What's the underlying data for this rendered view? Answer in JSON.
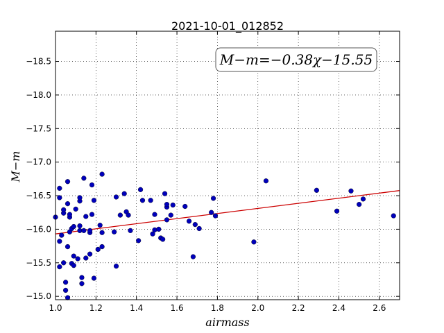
{
  "chart_data": {
    "type": "scatter",
    "title": "2021-10-01_012852",
    "xlabel": "airmass",
    "ylabel": "M−m",
    "xlim": [
      1.0,
      2.7
    ],
    "ylim": [
      -18.95,
      -14.95
    ],
    "y_inverted": true,
    "grid": true,
    "x_ticks": [
      1.0,
      1.2,
      1.4,
      1.6,
      1.8,
      2.0,
      2.2,
      2.4,
      2.6
    ],
    "x_tick_labels": [
      "1.0",
      "1.2",
      "1.4",
      "1.6",
      "1.8",
      "2.0",
      "2.2",
      "2.4",
      "2.6"
    ],
    "y_ticks": [
      -15.0,
      -15.5,
      -16.0,
      -16.5,
      -17.0,
      -17.5,
      -18.0,
      -18.5
    ],
    "y_tick_labels": [
      "−15.0",
      "−15.5",
      "−16.0",
      "−16.5",
      "−17.0",
      "−17.5",
      "−18.0",
      "−18.5"
    ],
    "annotation": "M−m=−0.38χ−15.55",
    "fit": {
      "slope": -0.38,
      "intercept": -15.55,
      "color": "#cc0000"
    },
    "marker_color": "#0000bb",
    "points": [
      [
        1.0,
        -16.18
      ],
      [
        1.02,
        -15.44
      ],
      [
        1.02,
        -15.82
      ],
      [
        1.02,
        -16.47
      ],
      [
        1.02,
        -16.61
      ],
      [
        1.03,
        -15.91
      ],
      [
        1.04,
        -15.5
      ],
      [
        1.04,
        -16.24
      ],
      [
        1.04,
        -16.29
      ],
      [
        1.05,
        -15.09
      ],
      [
        1.05,
        -15.21
      ],
      [
        1.06,
        -14.98
      ],
      [
        1.06,
        -15.74
      ],
      [
        1.06,
        -16.38
      ],
      [
        1.06,
        -16.71
      ],
      [
        1.07,
        -15.96
      ],
      [
        1.07,
        -16.18
      ],
      [
        1.07,
        -16.22
      ],
      [
        1.08,
        -15.49
      ],
      [
        1.08,
        -16.01
      ],
      [
        1.09,
        -15.46
      ],
      [
        1.09,
        -15.6
      ],
      [
        1.09,
        -16.04
      ],
      [
        1.1,
        -16.3
      ],
      [
        1.11,
        -15.56
      ],
      [
        1.12,
        -15.98
      ],
      [
        1.12,
        -16.05
      ],
      [
        1.12,
        -16.42
      ],
      [
        1.12,
        -16.47
      ],
      [
        1.13,
        -15.19
      ],
      [
        1.13,
        -15.28
      ],
      [
        1.14,
        -15.98
      ],
      [
        1.14,
        -16.76
      ],
      [
        1.15,
        -15.57
      ],
      [
        1.15,
        -16.19
      ],
      [
        1.17,
        -15.63
      ],
      [
        1.17,
        -15.95
      ],
      [
        1.17,
        -15.98
      ],
      [
        1.18,
        -16.22
      ],
      [
        1.18,
        -16.66
      ],
      [
        1.19,
        -15.27
      ],
      [
        1.19,
        -16.43
      ],
      [
        1.21,
        -15.7
      ],
      [
        1.22,
        -16.06
      ],
      [
        1.23,
        -15.74
      ],
      [
        1.23,
        -15.95
      ],
      [
        1.23,
        -16.82
      ],
      [
        1.29,
        -15.96
      ],
      [
        1.3,
        -15.45
      ],
      [
        1.3,
        -16.48
      ],
      [
        1.32,
        -16.21
      ],
      [
        1.34,
        -16.53
      ],
      [
        1.35,
        -16.26
      ],
      [
        1.36,
        -16.21
      ],
      [
        1.37,
        -15.98
      ],
      [
        1.41,
        -15.83
      ],
      [
        1.42,
        -16.59
      ],
      [
        1.43,
        -16.43
      ],
      [
        1.47,
        -16.43
      ],
      [
        1.48,
        -15.93
      ],
      [
        1.49,
        -15.99
      ],
      [
        1.49,
        -16.22
      ],
      [
        1.51,
        -16.0
      ],
      [
        1.52,
        -15.87
      ],
      [
        1.53,
        -15.85
      ],
      [
        1.54,
        -16.53
      ],
      [
        1.55,
        -16.14
      ],
      [
        1.55,
        -16.33
      ],
      [
        1.55,
        -16.37
      ],
      [
        1.57,
        -16.21
      ],
      [
        1.58,
        -16.36
      ],
      [
        1.64,
        -16.34
      ],
      [
        1.66,
        -16.12
      ],
      [
        1.68,
        -15.59
      ],
      [
        1.69,
        -16.07
      ],
      [
        1.71,
        -16.01
      ],
      [
        1.77,
        -16.25
      ],
      [
        1.78,
        -16.46
      ],
      [
        1.79,
        -16.2
      ],
      [
        1.98,
        -15.81
      ],
      [
        2.04,
        -16.72
      ],
      [
        2.29,
        -16.58
      ],
      [
        2.39,
        -16.27
      ],
      [
        2.46,
        -16.57
      ],
      [
        2.5,
        -16.37
      ],
      [
        2.52,
        -16.45
      ],
      [
        2.67,
        -16.2
      ]
    ]
  }
}
